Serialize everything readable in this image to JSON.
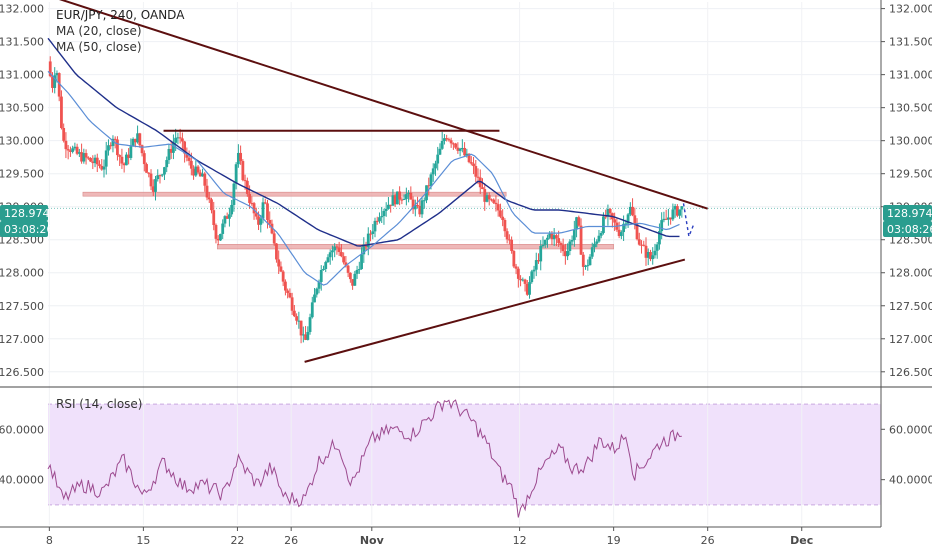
{
  "instrument": {
    "title": "EUR/JPY, 240, OANDA",
    "ma20_label": "MA (20, close)",
    "ma50_label": "MA (50, close)",
    "last_price": "128.974",
    "countdown": "03:08:26"
  },
  "rsi_panel": {
    "label": "RSI (14, close)",
    "band_upper": 70,
    "band_lower": 30
  },
  "colors": {
    "candle_up": "#26a69a",
    "candle_down": "#ef5350",
    "ma20": "#5b8ed6",
    "ma50": "#1f2f8a",
    "trendline": "#5c0f0f",
    "zone": "#e8a0a0",
    "rsi_line": "#9c4a8f",
    "rsi_band": "#f0e1fb",
    "badge": "#2a9d8f",
    "projection": "#2b3fbf"
  },
  "chart_data": [
    {
      "type": "candlestick",
      "title": "EUR/JPY, 240, OANDA",
      "ylim": [
        126.3,
        132.1
      ],
      "y_ticks": [
        "132.000",
        "131.500",
        "131.000",
        "130.500",
        "130.000",
        "129.500",
        "129.000",
        "128.500",
        "128.000",
        "127.500",
        "127.000",
        "126.500"
      ],
      "x_ticks": [
        "8",
        "15",
        "22",
        "26",
        "Nov",
        "12",
        "19",
        "26",
        "Dec"
      ],
      "x_tick_days": [
        8,
        15,
        22,
        26,
        32,
        43,
        50,
        57,
        64
      ],
      "x_domain": [
        7.9,
        69.9
      ],
      "last_price": 128.974,
      "path_waypoints": [
        {
          "day": 7.9,
          "price": 131.2
        },
        {
          "day": 8.2,
          "price": 130.8
        },
        {
          "day": 8.5,
          "price": 131.2
        },
        {
          "day": 9.0,
          "price": 130.0
        },
        {
          "day": 10.0,
          "price": 129.8
        },
        {
          "day": 11.0,
          "price": 129.7
        },
        {
          "day": 12.0,
          "price": 129.6
        },
        {
          "day": 12.7,
          "price": 130.1
        },
        {
          "day": 13.5,
          "price": 129.6
        },
        {
          "day": 14.5,
          "price": 130.1
        },
        {
          "day": 15.2,
          "price": 129.6
        },
        {
          "day": 15.7,
          "price": 129.3
        },
        {
          "day": 16.5,
          "price": 129.6
        },
        {
          "day": 17.5,
          "price": 130.1
        },
        {
          "day": 18.5,
          "price": 129.6
        },
        {
          "day": 19.5,
          "price": 129.4
        },
        {
          "day": 20.5,
          "price": 128.5
        },
        {
          "day": 21.5,
          "price": 129.0
        },
        {
          "day": 22.0,
          "price": 129.8
        },
        {
          "day": 22.5,
          "price": 129.4
        },
        {
          "day": 23.5,
          "price": 128.7
        },
        {
          "day": 24.0,
          "price": 129.1
        },
        {
          "day": 24.7,
          "price": 128.4
        },
        {
          "day": 25.5,
          "price": 127.8
        },
        {
          "day": 26.5,
          "price": 127.3
        },
        {
          "day": 27.0,
          "price": 126.9
        },
        {
          "day": 28.0,
          "price": 127.9
        },
        {
          "day": 28.7,
          "price": 128.3
        },
        {
          "day": 29.5,
          "price": 128.4
        },
        {
          "day": 30.5,
          "price": 127.8
        },
        {
          "day": 31.5,
          "price": 128.4
        },
        {
          "day": 32.5,
          "price": 128.9
        },
        {
          "day": 33.5,
          "price": 129.1
        },
        {
          "day": 34.5,
          "price": 129.2
        },
        {
          "day": 35.5,
          "price": 128.9
        },
        {
          "day": 36.5,
          "price": 129.5
        },
        {
          "day": 37.5,
          "price": 130.1
        },
        {
          "day": 38.5,
          "price": 129.9
        },
        {
          "day": 39.5,
          "price": 129.6
        },
        {
          "day": 40.5,
          "price": 129.1
        },
        {
          "day": 41.7,
          "price": 128.9
        },
        {
          "day": 42.5,
          "price": 128.2
        },
        {
          "day": 43.5,
          "price": 127.7
        },
        {
          "day": 44.5,
          "price": 128.3
        },
        {
          "day": 45.3,
          "price": 128.6
        },
        {
          "day": 46.5,
          "price": 128.3
        },
        {
          "day": 47.3,
          "price": 128.8
        },
        {
          "day": 47.8,
          "price": 128.0
        },
        {
          "day": 48.7,
          "price": 128.5
        },
        {
          "day": 49.5,
          "price": 128.9
        },
        {
          "day": 50.5,
          "price": 128.6
        },
        {
          "day": 51.2,
          "price": 129.0
        },
        {
          "day": 52.0,
          "price": 128.4
        },
        {
          "day": 52.8,
          "price": 128.2
        },
        {
          "day": 53.5,
          "price": 128.7
        },
        {
          "day": 54.3,
          "price": 128.9
        },
        {
          "day": 55.1,
          "price": 128.974
        }
      ],
      "ma20_waypoints": [
        {
          "day": 7.9,
          "price": 131.05
        },
        {
          "day": 9.5,
          "price": 130.7
        },
        {
          "day": 11.0,
          "price": 130.3
        },
        {
          "day": 13.0,
          "price": 129.95
        },
        {
          "day": 15.0,
          "price": 129.9
        },
        {
          "day": 17.0,
          "price": 129.95
        },
        {
          "day": 19.0,
          "price": 129.7
        },
        {
          "day": 21.0,
          "price": 129.2
        },
        {
          "day": 23.0,
          "price": 129.0
        },
        {
          "day": 25.0,
          "price": 128.6
        },
        {
          "day": 27.0,
          "price": 128.0
        },
        {
          "day": 28.5,
          "price": 127.8
        },
        {
          "day": 30.0,
          "price": 128.1
        },
        {
          "day": 32.0,
          "price": 128.4
        },
        {
          "day": 34.0,
          "price": 128.75
        },
        {
          "day": 36.0,
          "price": 129.2
        },
        {
          "day": 38.0,
          "price": 129.7
        },
        {
          "day": 39.5,
          "price": 129.8
        },
        {
          "day": 41.0,
          "price": 129.5
        },
        {
          "day": 42.5,
          "price": 128.9
        },
        {
          "day": 44.0,
          "price": 128.6
        },
        {
          "day": 46.0,
          "price": 128.6
        },
        {
          "day": 48.0,
          "price": 128.7
        },
        {
          "day": 50.0,
          "price": 128.7
        },
        {
          "day": 52.0,
          "price": 128.75
        },
        {
          "day": 54.0,
          "price": 128.65
        },
        {
          "day": 55.1,
          "price": 128.75
        }
      ],
      "ma50_waypoints": [
        {
          "day": 7.9,
          "price": 131.55
        },
        {
          "day": 10.0,
          "price": 131.0
        },
        {
          "day": 13.0,
          "price": 130.5
        },
        {
          "day": 16.0,
          "price": 130.15
        },
        {
          "day": 19.0,
          "price": 129.7
        },
        {
          "day": 22.0,
          "price": 129.35
        },
        {
          "day": 25.0,
          "price": 129.05
        },
        {
          "day": 28.0,
          "price": 128.65
        },
        {
          "day": 31.0,
          "price": 128.4
        },
        {
          "day": 34.0,
          "price": 128.5
        },
        {
          "day": 37.0,
          "price": 128.9
        },
        {
          "day": 40.0,
          "price": 129.4
        },
        {
          "day": 42.0,
          "price": 129.1
        },
        {
          "day": 44.0,
          "price": 128.95
        },
        {
          "day": 46.0,
          "price": 128.95
        },
        {
          "day": 48.0,
          "price": 128.9
        },
        {
          "day": 50.0,
          "price": 128.85
        },
        {
          "day": 52.0,
          "price": 128.7
        },
        {
          "day": 54.0,
          "price": 128.55
        },
        {
          "day": 55.1,
          "price": 128.55
        }
      ],
      "trendlines": [
        {
          "from": {
            "day": 7.9,
            "price": 132.2
          },
          "to": {
            "day": 57.0,
            "price": 128.97
          }
        },
        {
          "from": {
            "day": 27.0,
            "price": 126.65
          },
          "to": {
            "day": 55.3,
            "price": 128.2
          }
        },
        {
          "from": {
            "day": 16.5,
            "price": 130.15
          },
          "to": {
            "day": 41.5,
            "price": 130.15
          }
        }
      ],
      "zones": [
        {
          "from_day": 10.5,
          "to_day": 42.0,
          "low": 129.16,
          "high": 129.22
        },
        {
          "from_day": 20.5,
          "to_day": 50.0,
          "low": 128.36,
          "high": 128.43
        }
      ],
      "projection": [
        {
          "day": 55.2,
          "price": 129.05
        },
        {
          "day": 55.6,
          "price": 128.55
        },
        {
          "day": 56.0,
          "price": 128.75
        }
      ]
    },
    {
      "type": "line",
      "title": "RSI (14, close)",
      "ylim": [
        22,
        76
      ],
      "y_ticks": [
        "60.0000",
        "40.0000"
      ],
      "y_tick_values": [
        60,
        40
      ],
      "band": [
        30,
        70
      ],
      "waypoints": [
        {
          "day": 7.9,
          "price": 47
        },
        {
          "day": 9.0,
          "price": 32
        },
        {
          "day": 10.5,
          "price": 38
        },
        {
          "day": 12.0,
          "price": 35
        },
        {
          "day": 13.5,
          "price": 48
        },
        {
          "day": 15.0,
          "price": 33
        },
        {
          "day": 16.5,
          "price": 47
        },
        {
          "day": 18.0,
          "price": 37
        },
        {
          "day": 19.5,
          "price": 38
        },
        {
          "day": 21.0,
          "price": 34
        },
        {
          "day": 22.0,
          "price": 48
        },
        {
          "day": 23.5,
          "price": 38
        },
        {
          "day": 24.5,
          "price": 45
        },
        {
          "day": 25.5,
          "price": 33
        },
        {
          "day": 27.0,
          "price": 32
        },
        {
          "day": 28.0,
          "price": 47
        },
        {
          "day": 29.5,
          "price": 55
        },
        {
          "day": 30.5,
          "price": 38
        },
        {
          "day": 32.0,
          "price": 56
        },
        {
          "day": 33.5,
          "price": 60
        },
        {
          "day": 35.0,
          "price": 58
        },
        {
          "day": 36.5,
          "price": 66
        },
        {
          "day": 37.5,
          "price": 72
        },
        {
          "day": 38.5,
          "price": 68
        },
        {
          "day": 39.5,
          "price": 63
        },
        {
          "day": 40.5,
          "price": 55
        },
        {
          "day": 41.5,
          "price": 43
        },
        {
          "day": 42.5,
          "price": 36
        },
        {
          "day": 43.0,
          "price": 26
        },
        {
          "day": 44.0,
          "price": 38
        },
        {
          "day": 45.0,
          "price": 47
        },
        {
          "day": 46.0,
          "price": 52
        },
        {
          "day": 47.0,
          "price": 44
        },
        {
          "day": 48.0,
          "price": 46
        },
        {
          "day": 49.0,
          "price": 56
        },
        {
          "day": 50.0,
          "price": 52
        },
        {
          "day": 51.0,
          "price": 58
        },
        {
          "day": 51.5,
          "price": 42
        },
        {
          "day": 52.5,
          "price": 48
        },
        {
          "day": 53.5,
          "price": 55
        },
        {
          "day": 54.5,
          "price": 57
        },
        {
          "day": 55.1,
          "price": 60
        }
      ]
    }
  ]
}
